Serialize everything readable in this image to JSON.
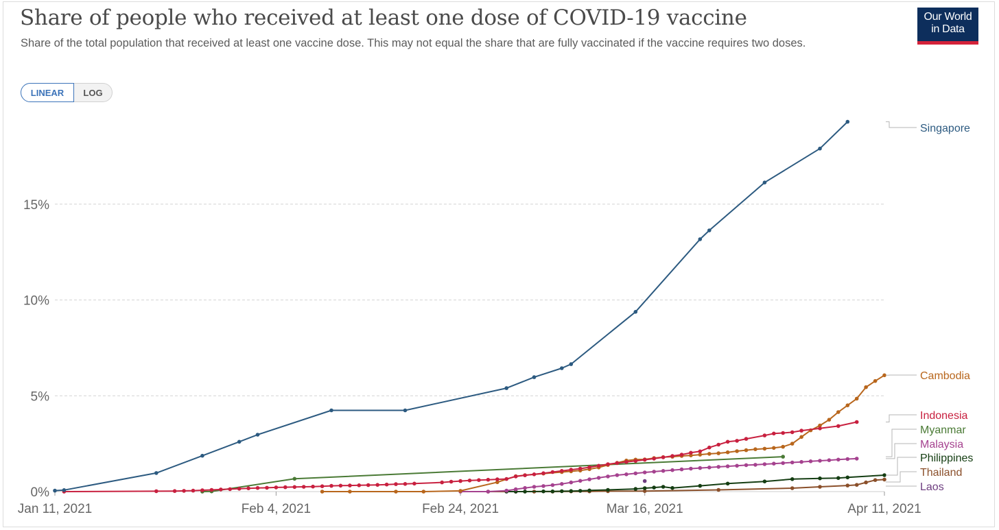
{
  "header": {
    "title": "Share of people who received at least one dose of COVID-19 vaccine",
    "subtitle": "Share of the total population that received at least one vaccine dose. This may not equal the share that are fully vaccinated if the vaccine requires two doses."
  },
  "logo": {
    "line1": "Our World",
    "line2": "in Data"
  },
  "scale_toggle": {
    "linear_label": "LINEAR",
    "log_label": "LOG",
    "selected": "LINEAR"
  },
  "chart_data": {
    "type": "line",
    "x_unit": "date",
    "y_unit": "% of population",
    "xlim": [
      "2021-01-11",
      "2021-04-11"
    ],
    "ylim": [
      0,
      21.5
    ],
    "x_ticks": [
      {
        "date": "2021-01-11",
        "label": "Jan 11, 2021"
      },
      {
        "date": "2021-02-04",
        "label": "Feb 4, 2021"
      },
      {
        "date": "2021-02-24",
        "label": "Feb 24, 2021"
      },
      {
        "date": "2021-03-16",
        "label": "Mar 16, 2021"
      },
      {
        "date": "2021-04-11",
        "label": "Apr 11, 2021"
      }
    ],
    "y_ticks": [
      {
        "value": 0,
        "label": "0%"
      },
      {
        "value": 5,
        "label": "5%"
      },
      {
        "value": 10,
        "label": "10%"
      },
      {
        "value": 15,
        "label": "15%"
      }
    ],
    "grid": "horizontal dashed",
    "legend": "labels at line ends (right)",
    "series": [
      {
        "name": "Singapore",
        "color": "#2c5a80",
        "points": [
          [
            "2021-01-11",
            0.05
          ],
          [
            "2021-01-12",
            0.08
          ],
          [
            "2021-01-22",
            0.97
          ],
          [
            "2021-01-27",
            1.87
          ],
          [
            "2021-01-31",
            2.6
          ],
          [
            "2021-02-02",
            2.97
          ],
          [
            "2021-02-10",
            4.24
          ],
          [
            "2021-02-18",
            4.24
          ],
          [
            "2021-03-01",
            5.4
          ],
          [
            "2021-03-04",
            5.97
          ],
          [
            "2021-03-07",
            6.44
          ],
          [
            "2021-03-08",
            6.65
          ],
          [
            "2021-03-15",
            9.38
          ],
          [
            "2021-03-22",
            13.17
          ],
          [
            "2021-03-23",
            13.63
          ],
          [
            "2021-03-29",
            16.13
          ],
          [
            "2021-04-04",
            17.9
          ],
          [
            "2021-04-07",
            19.3
          ]
        ]
      },
      {
        "name": "Cambodia",
        "color": "#b8661c",
        "points": [
          [
            "2021-02-09",
            0.0
          ],
          [
            "2021-02-12",
            0.0
          ],
          [
            "2021-02-17",
            0.0
          ],
          [
            "2021-02-20",
            0.0
          ],
          [
            "2021-02-24",
            0.04
          ],
          [
            "2021-02-28",
            0.49
          ],
          [
            "2021-03-02",
            0.8
          ],
          [
            "2021-03-03",
            0.86
          ],
          [
            "2021-03-05",
            0.94
          ],
          [
            "2021-03-07",
            1.02
          ],
          [
            "2021-03-08",
            1.06
          ],
          [
            "2021-03-09",
            1.1
          ],
          [
            "2021-03-10",
            1.17
          ],
          [
            "2021-03-11",
            1.26
          ],
          [
            "2021-03-12",
            1.39
          ],
          [
            "2021-03-13",
            1.5
          ],
          [
            "2021-03-14",
            1.62
          ],
          [
            "2021-03-15",
            1.67
          ],
          [
            "2021-03-16",
            1.68
          ],
          [
            "2021-03-17",
            1.75
          ],
          [
            "2021-03-18",
            1.8
          ],
          [
            "2021-03-19",
            1.82
          ],
          [
            "2021-03-20",
            1.86
          ],
          [
            "2021-03-21",
            1.89
          ],
          [
            "2021-03-22",
            1.93
          ],
          [
            "2021-03-23",
            1.97
          ],
          [
            "2021-03-24",
            2.0
          ],
          [
            "2021-03-25",
            2.05
          ],
          [
            "2021-03-26",
            2.11
          ],
          [
            "2021-03-27",
            2.16
          ],
          [
            "2021-03-28",
            2.21
          ],
          [
            "2021-03-29",
            2.24
          ],
          [
            "2021-03-30",
            2.28
          ],
          [
            "2021-03-31",
            2.34
          ],
          [
            "2021-04-01",
            2.5
          ],
          [
            "2021-04-02",
            2.85
          ],
          [
            "2021-04-03",
            3.2
          ],
          [
            "2021-04-04",
            3.45
          ],
          [
            "2021-04-05",
            3.75
          ],
          [
            "2021-04-06",
            4.15
          ],
          [
            "2021-04-07",
            4.5
          ],
          [
            "2021-04-08",
            4.85
          ],
          [
            "2021-04-09",
            5.45
          ],
          [
            "2021-04-10",
            5.77
          ],
          [
            "2021-04-11",
            6.07
          ]
        ]
      },
      {
        "name": "Indonesia",
        "color": "#c8203f",
        "points": [
          [
            "2021-01-12",
            0.0
          ],
          [
            "2021-01-22",
            0.02
          ],
          [
            "2021-01-24",
            0.03
          ],
          [
            "2021-01-25",
            0.04
          ],
          [
            "2021-01-26",
            0.05
          ],
          [
            "2021-01-27",
            0.07
          ],
          [
            "2021-01-28",
            0.09
          ],
          [
            "2021-01-29",
            0.11
          ],
          [
            "2021-01-30",
            0.13
          ],
          [
            "2021-01-31",
            0.15
          ],
          [
            "2021-02-01",
            0.17
          ],
          [
            "2021-02-02",
            0.19
          ],
          [
            "2021-02-03",
            0.2
          ],
          [
            "2021-02-04",
            0.22
          ],
          [
            "2021-02-05",
            0.23
          ],
          [
            "2021-02-06",
            0.24
          ],
          [
            "2021-02-07",
            0.25
          ],
          [
            "2021-02-08",
            0.26
          ],
          [
            "2021-02-09",
            0.28
          ],
          [
            "2021-02-10",
            0.3
          ],
          [
            "2021-02-11",
            0.31
          ],
          [
            "2021-02-12",
            0.32
          ],
          [
            "2021-02-13",
            0.33
          ],
          [
            "2021-02-14",
            0.34
          ],
          [
            "2021-02-15",
            0.35
          ],
          [
            "2021-02-16",
            0.37
          ],
          [
            "2021-02-17",
            0.39
          ],
          [
            "2021-02-18",
            0.4
          ],
          [
            "2021-02-19",
            0.42
          ],
          [
            "2021-02-22",
            0.48
          ],
          [
            "2021-02-23",
            0.52
          ],
          [
            "2021-02-24",
            0.55
          ],
          [
            "2021-02-25",
            0.58
          ],
          [
            "2021-02-26",
            0.6
          ],
          [
            "2021-02-27",
            0.62
          ],
          [
            "2021-02-28",
            0.64
          ],
          [
            "2021-03-01",
            0.66
          ],
          [
            "2021-03-02",
            0.79
          ],
          [
            "2021-03-03",
            0.85
          ],
          [
            "2021-03-04",
            0.9
          ],
          [
            "2021-03-05",
            0.96
          ],
          [
            "2021-03-06",
            1.02
          ],
          [
            "2021-03-07",
            1.08
          ],
          [
            "2021-03-08",
            1.14
          ],
          [
            "2021-03-09",
            1.2
          ],
          [
            "2021-03-10",
            1.27
          ],
          [
            "2021-03-11",
            1.35
          ],
          [
            "2021-03-12",
            1.43
          ],
          [
            "2021-03-13",
            1.49
          ],
          [
            "2021-03-14",
            1.55
          ],
          [
            "2021-03-15",
            1.6
          ],
          [
            "2021-03-16",
            1.66
          ],
          [
            "2021-03-17",
            1.72
          ],
          [
            "2021-03-18",
            1.79
          ],
          [
            "2021-03-19",
            1.86
          ],
          [
            "2021-03-20",
            1.93
          ],
          [
            "2021-03-21",
            2.03
          ],
          [
            "2021-03-22",
            2.1
          ],
          [
            "2021-03-23",
            2.3
          ],
          [
            "2021-03-24",
            2.45
          ],
          [
            "2021-03-25",
            2.6
          ],
          [
            "2021-03-26",
            2.65
          ],
          [
            "2021-03-27",
            2.75
          ],
          [
            "2021-03-29",
            2.93
          ],
          [
            "2021-03-30",
            3.03
          ],
          [
            "2021-03-31",
            3.06
          ],
          [
            "2021-04-01",
            3.1
          ],
          [
            "2021-04-02",
            3.18
          ],
          [
            "2021-04-04",
            3.3
          ],
          [
            "2021-04-06",
            3.42
          ],
          [
            "2021-04-08",
            3.63
          ]
        ]
      },
      {
        "name": "Myanmar",
        "color": "#4a7a35",
        "points": [
          [
            "2021-01-27",
            0.0
          ],
          [
            "2021-01-28",
            0.01
          ],
          [
            "2021-02-06",
            0.67
          ],
          [
            "2021-03-31",
            1.82
          ]
        ]
      },
      {
        "name": "Malaysia",
        "color": "#a5428f",
        "points": [
          [
            "2021-02-24",
            0.0
          ],
          [
            "2021-02-27",
            0.0
          ],
          [
            "2021-03-01",
            0.05
          ],
          [
            "2021-03-02",
            0.12
          ],
          [
            "2021-03-03",
            0.19
          ],
          [
            "2021-03-04",
            0.25
          ],
          [
            "2021-03-05",
            0.29
          ],
          [
            "2021-03-06",
            0.34
          ],
          [
            "2021-03-07",
            0.4
          ],
          [
            "2021-03-08",
            0.48
          ],
          [
            "2021-03-09",
            0.56
          ],
          [
            "2021-03-10",
            0.64
          ],
          [
            "2021-03-11",
            0.72
          ],
          [
            "2021-03-12",
            0.79
          ],
          [
            "2021-03-13",
            0.86
          ],
          [
            "2021-03-14",
            0.9
          ],
          [
            "2021-03-15",
            0.95
          ],
          [
            "2021-03-16",
            1.0
          ],
          [
            "2021-03-17",
            1.04
          ],
          [
            "2021-03-18",
            1.08
          ],
          [
            "2021-03-19",
            1.12
          ],
          [
            "2021-03-20",
            1.16
          ],
          [
            "2021-03-21",
            1.2
          ],
          [
            "2021-03-22",
            1.23
          ],
          [
            "2021-03-23",
            1.26
          ],
          [
            "2021-03-24",
            1.29
          ],
          [
            "2021-03-25",
            1.32
          ],
          [
            "2021-03-26",
            1.35
          ],
          [
            "2021-03-27",
            1.38
          ],
          [
            "2021-03-28",
            1.4
          ],
          [
            "2021-03-29",
            1.43
          ],
          [
            "2021-03-30",
            1.46
          ],
          [
            "2021-03-31",
            1.49
          ],
          [
            "2021-04-01",
            1.52
          ],
          [
            "2021-04-02",
            1.55
          ],
          [
            "2021-04-03",
            1.58
          ],
          [
            "2021-04-04",
            1.61
          ],
          [
            "2021-04-05",
            1.64
          ],
          [
            "2021-04-06",
            1.67
          ],
          [
            "2021-04-07",
            1.7
          ],
          [
            "2021-04-08",
            1.72
          ]
        ]
      },
      {
        "name": "Philippines",
        "color": "#143d12",
        "points": [
          [
            "2021-03-01",
            0.0
          ],
          [
            "2021-03-02",
            0.0
          ],
          [
            "2021-03-03",
            0.0
          ],
          [
            "2021-03-05",
            0.01
          ],
          [
            "2021-03-06",
            0.01
          ],
          [
            "2021-03-07",
            0.02
          ],
          [
            "2021-03-08",
            0.03
          ],
          [
            "2021-03-09",
            0.04
          ],
          [
            "2021-03-10",
            0.06
          ],
          [
            "2021-03-12",
            0.09
          ],
          [
            "2021-03-15",
            0.14
          ],
          [
            "2021-03-16",
            0.18
          ],
          [
            "2021-03-17",
            0.21
          ],
          [
            "2021-03-18",
            0.25
          ],
          [
            "2021-03-19",
            0.19
          ],
          [
            "2021-03-22",
            0.3
          ],
          [
            "2021-03-25",
            0.42
          ],
          [
            "2021-03-29",
            0.53
          ],
          [
            "2021-04-01",
            0.65
          ],
          [
            "2021-04-04",
            0.69
          ],
          [
            "2021-04-06",
            0.71
          ],
          [
            "2021-04-07",
            0.74
          ],
          [
            "2021-04-11",
            0.86
          ]
        ]
      },
      {
        "name": "Thailand",
        "color": "#8a4f2a",
        "points": [
          [
            "2021-02-27",
            0.0
          ],
          [
            "2021-03-02",
            0.0
          ],
          [
            "2021-03-04",
            0.0
          ],
          [
            "2021-03-06",
            0.0
          ],
          [
            "2021-03-08",
            0.01
          ],
          [
            "2021-03-10",
            0.01
          ],
          [
            "2021-03-12",
            0.02
          ],
          [
            "2021-03-16",
            0.03
          ],
          [
            "2021-03-24",
            0.09
          ],
          [
            "2021-04-01",
            0.18
          ],
          [
            "2021-04-04",
            0.25
          ],
          [
            "2021-04-07",
            0.32
          ],
          [
            "2021-04-08",
            0.35
          ],
          [
            "2021-04-09",
            0.48
          ],
          [
            "2021-04-10",
            0.6
          ],
          [
            "2021-04-11",
            0.63
          ]
        ]
      },
      {
        "name": "Laos",
        "color": "#6e3e80",
        "points": [
          [
            "2021-03-16",
            0.55
          ]
        ]
      }
    ]
  }
}
